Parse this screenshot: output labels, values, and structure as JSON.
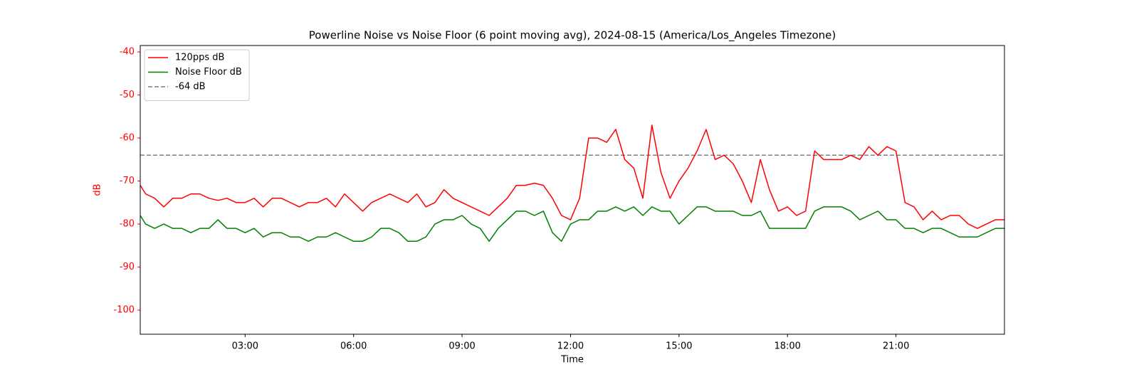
{
  "chart_data": {
    "type": "line",
    "title": "Powerline Noise vs Noise Floor (6 point moving avg), 2024-08-15 (America/Los_Angeles Timezone)",
    "xlabel": "Time",
    "ylabel": "dB",
    "axis_color": "#ff0000",
    "legend": "upper left",
    "xlim": [
      0.1,
      24
    ],
    "ylim": [
      -105.6,
      -38.5
    ],
    "xticks": [
      {
        "value": 3,
        "label": "03:00"
      },
      {
        "value": 6,
        "label": "06:00"
      },
      {
        "value": 9,
        "label": "09:00"
      },
      {
        "value": 12,
        "label": "12:00"
      },
      {
        "value": 15,
        "label": "15:00"
      },
      {
        "value": 18,
        "label": "18:00"
      },
      {
        "value": 21,
        "label": "21:00"
      }
    ],
    "yticks": [
      -40,
      -50,
      -60,
      -70,
      -80,
      -90,
      -100
    ],
    "x": [
      0.1,
      0.25,
      0.5,
      0.75,
      1,
      1.25,
      1.5,
      1.75,
      2,
      2.25,
      2.5,
      2.75,
      3,
      3.25,
      3.5,
      3.75,
      4,
      4.25,
      4.5,
      4.75,
      5,
      5.25,
      5.5,
      5.75,
      6,
      6.25,
      6.5,
      6.75,
      7,
      7.25,
      7.5,
      7.75,
      8,
      8.25,
      8.5,
      8.75,
      9,
      9.25,
      9.5,
      9.75,
      10,
      10.25,
      10.5,
      10.75,
      11,
      11.25,
      11.5,
      11.75,
      12,
      12.25,
      12.5,
      12.75,
      13,
      13.25,
      13.5,
      13.75,
      14,
      14.25,
      14.5,
      14.75,
      15,
      15.25,
      15.5,
      15.75,
      16,
      16.25,
      16.5,
      16.75,
      17,
      17.25,
      17.5,
      17.75,
      18,
      18.25,
      18.5,
      18.75,
      19,
      19.25,
      19.5,
      19.75,
      20,
      20.25,
      20.5,
      20.75,
      21,
      21.25,
      21.5,
      21.75,
      22,
      22.25,
      22.5,
      22.75,
      23,
      23.25,
      23.5,
      23.75,
      24
    ],
    "series": [
      {
        "name": "120pps dB",
        "color": "#ff0000",
        "values": [
          -71,
          -73,
          -74,
          -76,
          -74,
          -74,
          -73,
          -73,
          -74,
          -74.5,
          -74,
          -75,
          -75,
          -74,
          -76,
          -74,
          -74,
          -75,
          -76,
          -75,
          -75,
          -74,
          -76,
          -73,
          -75,
          -77,
          -75,
          -74,
          -73,
          -74,
          -75,
          -73,
          -76,
          -75,
          -72,
          -74,
          -75,
          -76,
          -77,
          -78,
          -76,
          -74,
          -71,
          -71,
          -70.5,
          -71,
          -74,
          -78,
          -79,
          -74,
          -60,
          -60,
          -61,
          -58,
          -65,
          -67,
          -74,
          -57,
          -68,
          -74,
          -70,
          -67,
          -63,
          -58,
          -65,
          -64,
          -66,
          -70,
          -75,
          -65,
          -72,
          -77,
          -76,
          -78,
          -77,
          -63,
          -65,
          -65,
          -65,
          -64,
          -65,
          -62,
          -64,
          -62,
          -63,
          -75,
          -76,
          -79,
          -77,
          -79,
          -78,
          -78,
          -80,
          -81,
          -80,
          -79,
          -79
        ]
      },
      {
        "name": "Noise Floor dB",
        "color": "#008000",
        "values": [
          -78,
          -80,
          -81,
          -80,
          -81,
          -81,
          -82,
          -81,
          -81,
          -79,
          -81,
          -81,
          -82,
          -81,
          -83,
          -82,
          -82,
          -83,
          -83,
          -84,
          -83,
          -83,
          -82,
          -83,
          -84,
          -84,
          -83,
          -81,
          -81,
          -82,
          -84,
          -84,
          -83,
          -80,
          -79,
          -79,
          -78,
          -80,
          -81,
          -84,
          -81,
          -79,
          -77,
          -77,
          -78,
          -77,
          -82,
          -84,
          -80,
          -79,
          -79,
          -77,
          -77,
          -76,
          -77,
          -76,
          -78,
          -76,
          -77,
          -77,
          -80,
          -78,
          -76,
          -76,
          -77,
          -77,
          -77,
          -78,
          -78,
          -77,
          -81,
          -81,
          -81,
          -81,
          -81,
          -77,
          -76,
          -76,
          -76,
          -77,
          -79,
          -78,
          -77,
          -79,
          -79,
          -81,
          -81,
          -82,
          -81,
          -81,
          -82,
          -83,
          -83,
          -83,
          -82,
          -81,
          -81
        ]
      }
    ],
    "hlines": [
      {
        "name": "-64 dB",
        "value": -64,
        "color": "#808080",
        "dashed": true
      }
    ]
  }
}
